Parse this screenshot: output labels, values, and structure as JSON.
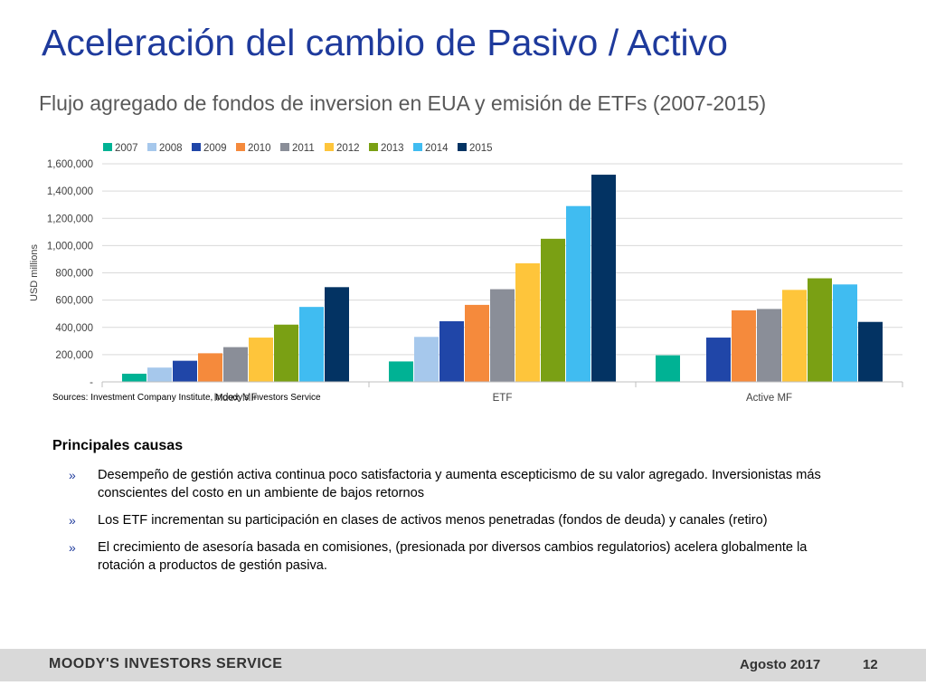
{
  "slide": {
    "title": "Aceleración del cambio de Pasivo / Activo",
    "subtitle": "Flujo agregado de fondos de inversion en EUA y emisión de ETFs (2007-2015)",
    "sources": "Sources: Investment Company Institute, Moody’s Investors Service"
  },
  "chart_data": {
    "type": "bar",
    "categories": [
      "Index MF",
      "ETF",
      "Active MF"
    ],
    "ylabel": "USD millions",
    "ylim": [
      0,
      1600000
    ],
    "yticks": [
      0,
      200000,
      400000,
      600000,
      800000,
      1000000,
      1200000,
      1400000,
      1600000
    ],
    "ytick_labels": [
      "-",
      "200,000",
      "400,000",
      "600,000",
      "800,000",
      "1,000,000",
      "1,200,000",
      "1,400,000",
      "1,600,000"
    ],
    "grid": true,
    "legend_position": "top-left",
    "series": [
      {
        "name": "2007",
        "color": "#00b294",
        "values": [
          60000,
          150000,
          195000
        ]
      },
      {
        "name": "2008",
        "color": "#a6c8ec",
        "values": [
          105000,
          330000,
          null
        ]
      },
      {
        "name": "2009",
        "color": "#2046a8",
        "values": [
          155000,
          445000,
          325000
        ]
      },
      {
        "name": "2010",
        "color": "#f58a3c",
        "values": [
          210000,
          565000,
          525000
        ]
      },
      {
        "name": "2011",
        "color": "#8a8e98",
        "values": [
          255000,
          680000,
          535000
        ]
      },
      {
        "name": "2012",
        "color": "#fec53b",
        "values": [
          325000,
          870000,
          675000
        ]
      },
      {
        "name": "2013",
        "color": "#7aa014",
        "values": [
          420000,
          1050000,
          760000
        ]
      },
      {
        "name": "2014",
        "color": "#40bcf1",
        "values": [
          550000,
          1290000,
          715000
        ]
      },
      {
        "name": "2015",
        "color": "#033363",
        "values": [
          695000,
          1520000,
          440000
        ]
      }
    ]
  },
  "causes": {
    "heading": "Principales causas",
    "marker": "»",
    "items": [
      "Desempeño de gestión activa continua poco satisfactoria y aumenta escepticismo de su valor agregado. Inversionistas más conscientes del costo en un ambiente de bajos retornos",
      "Los ETF incrementan su participación en clases de activos menos penetradas (fondos de deuda) y canales (retiro)",
      "El crecimiento de asesoría basada en comisiones, (presionada por diversos cambios regulatorios) acelera globalmente la rotación a productos de gestión pasiva."
    ]
  },
  "footer": {
    "brand": "MOODY'S INVESTORS SERVICE",
    "date": "Agosto 2017",
    "page": "12"
  }
}
